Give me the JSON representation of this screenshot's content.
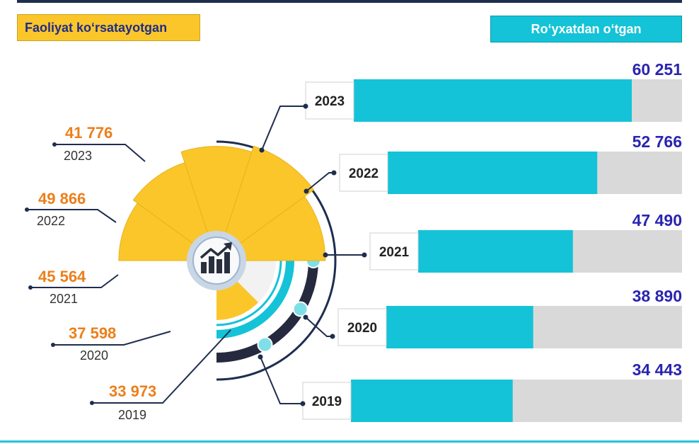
{
  "legend": {
    "left_label": "Faoliyat ko‘rsatayotgan",
    "right_label": "Ro‘yxatdan o‘tgan"
  },
  "colors": {
    "active": "#fbc62a",
    "registered": "#14c3d7",
    "track": "#d9d9d9",
    "value_orange": "#ec7f1a",
    "value_blue": "#2a24b0",
    "dark": "#1f2d4e"
  },
  "center_icon": "growth-chart-icon",
  "chart_data": [
    {
      "type": "pie",
      "series_label": "Faoliyat ko‘rsatayotgan",
      "categories": [
        "2023",
        "2022",
        "2021",
        "2020",
        "2019"
      ],
      "values": [
        41776,
        49866,
        45564,
        37598,
        33973
      ],
      "value_labels": [
        "41 776",
        "49 866",
        "45 564",
        "37 598",
        "33 973"
      ]
    },
    {
      "type": "bar",
      "orientation": "horizontal",
      "series_label": "Ro‘yxatdan o‘tgan",
      "categories": [
        "2023",
        "2022",
        "2021",
        "2020",
        "2019"
      ],
      "values": [
        60251,
        52766,
        47490,
        38890,
        34443
      ],
      "value_labels": [
        "60 251",
        "52 766",
        "47 490",
        "38 890",
        "34 443"
      ]
    }
  ]
}
